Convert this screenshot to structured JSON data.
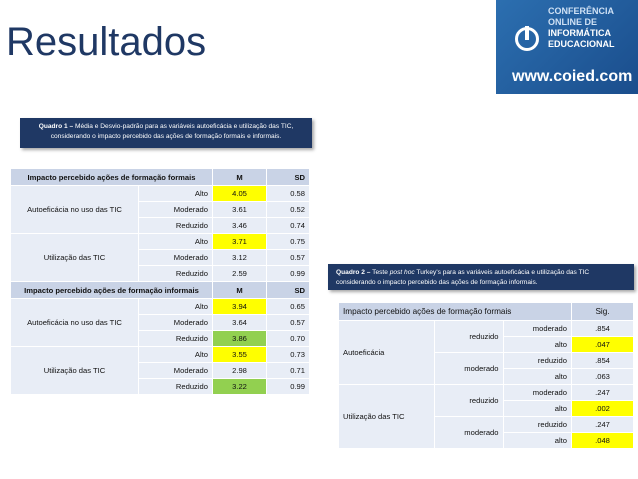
{
  "title": "Resultados",
  "brand": {
    "line1": "CONFERÊNCIA",
    "line2": "ONLINE DE",
    "line3": "INFORMÁTICA",
    "line4": "EDUCACIONAL",
    "url": "www.coied.com",
    "color": "#1f5ea8"
  },
  "caption1": {
    "bold": "Quadro 1 –",
    "text": " Média e Desvio-padrão para as variáveis autoeficácia e utilização das TIC, considerando o impacto percebido das ações de formação formais e informais."
  },
  "caption2": {
    "bold": "Quadro 2 –",
    "pre": " Teste ",
    "italic": "post hoc",
    "post": " Turkey's para as variáveis autoeficácia e utilização das TIC considerando o impacto percebido das ações de formação informais."
  },
  "table1": {
    "header_formais": {
      "label": "Impacto percebido ações de formação formais",
      "m": "M",
      "sd": "SD"
    },
    "header_informais": {
      "label": "Impacto percebido ações de formação informais",
      "m": "M",
      "sd": "SD"
    },
    "formais": [
      {
        "group": "Autoeficácia no uso das TIC",
        "rows": [
          {
            "level": "Alto",
            "m": "4.05",
            "sd": "0.58"
          },
          {
            "level": "Moderado",
            "m": "3.61",
            "sd": "0.52"
          },
          {
            "level": "Reduzido",
            "m": "3.46",
            "sd": "0.74"
          }
        ]
      },
      {
        "group": "Utilização das TIC",
        "rows": [
          {
            "level": "Alto",
            "m": "3.71",
            "sd": "0.75"
          },
          {
            "level": "Moderado",
            "m": "3.12",
            "sd": "0.57"
          },
          {
            "level": "Reduzido",
            "m": "2.59",
            "sd": "0.99"
          }
        ]
      }
    ],
    "informais": [
      {
        "group": "Autoeficácia no uso das TIC",
        "rows": [
          {
            "level": "Alto",
            "m": "3.94",
            "sd": "0.65"
          },
          {
            "level": "Moderado",
            "m": "3.64",
            "sd": "0.57"
          },
          {
            "level": "Reduzido",
            "m": "3.86",
            "sd": "0.70"
          }
        ]
      },
      {
        "group": "Utilização das TIC",
        "rows": [
          {
            "level": "Alto",
            "m": "3.55",
            "sd": "0.73"
          },
          {
            "level": "Moderado",
            "m": "2.98",
            "sd": "0.71"
          },
          {
            "level": "Reduzido",
            "m": "3.22",
            "sd": "0.99"
          }
        ]
      }
    ],
    "highlight_yellow": "#ffff00",
    "highlight_green": "#92d050"
  },
  "table2": {
    "header": {
      "label": "Impacto percebido ações de formação formais",
      "sig": "Sig."
    },
    "groups": [
      {
        "name": "Autoeficácia",
        "rows": [
          {
            "i": "reduzido",
            "j": "moderado",
            "sig": ".854"
          },
          {
            "i": "",
            "j": "alto",
            "sig": ".047"
          },
          {
            "i": "moderado",
            "j": "reduzido",
            "sig": ".854"
          },
          {
            "i": "",
            "j": "alto",
            "sig": ".063"
          }
        ]
      },
      {
        "name": "Utilização das TIC",
        "rows": [
          {
            "i": "reduzido",
            "j": "moderado",
            "sig": ".247"
          },
          {
            "i": "",
            "j": "alto",
            "sig": ".002"
          },
          {
            "i": "moderado",
            "j": "reduzido",
            "sig": ".247"
          },
          {
            "i": "",
            "j": "alto",
            "sig": ".048"
          }
        ]
      }
    ]
  }
}
